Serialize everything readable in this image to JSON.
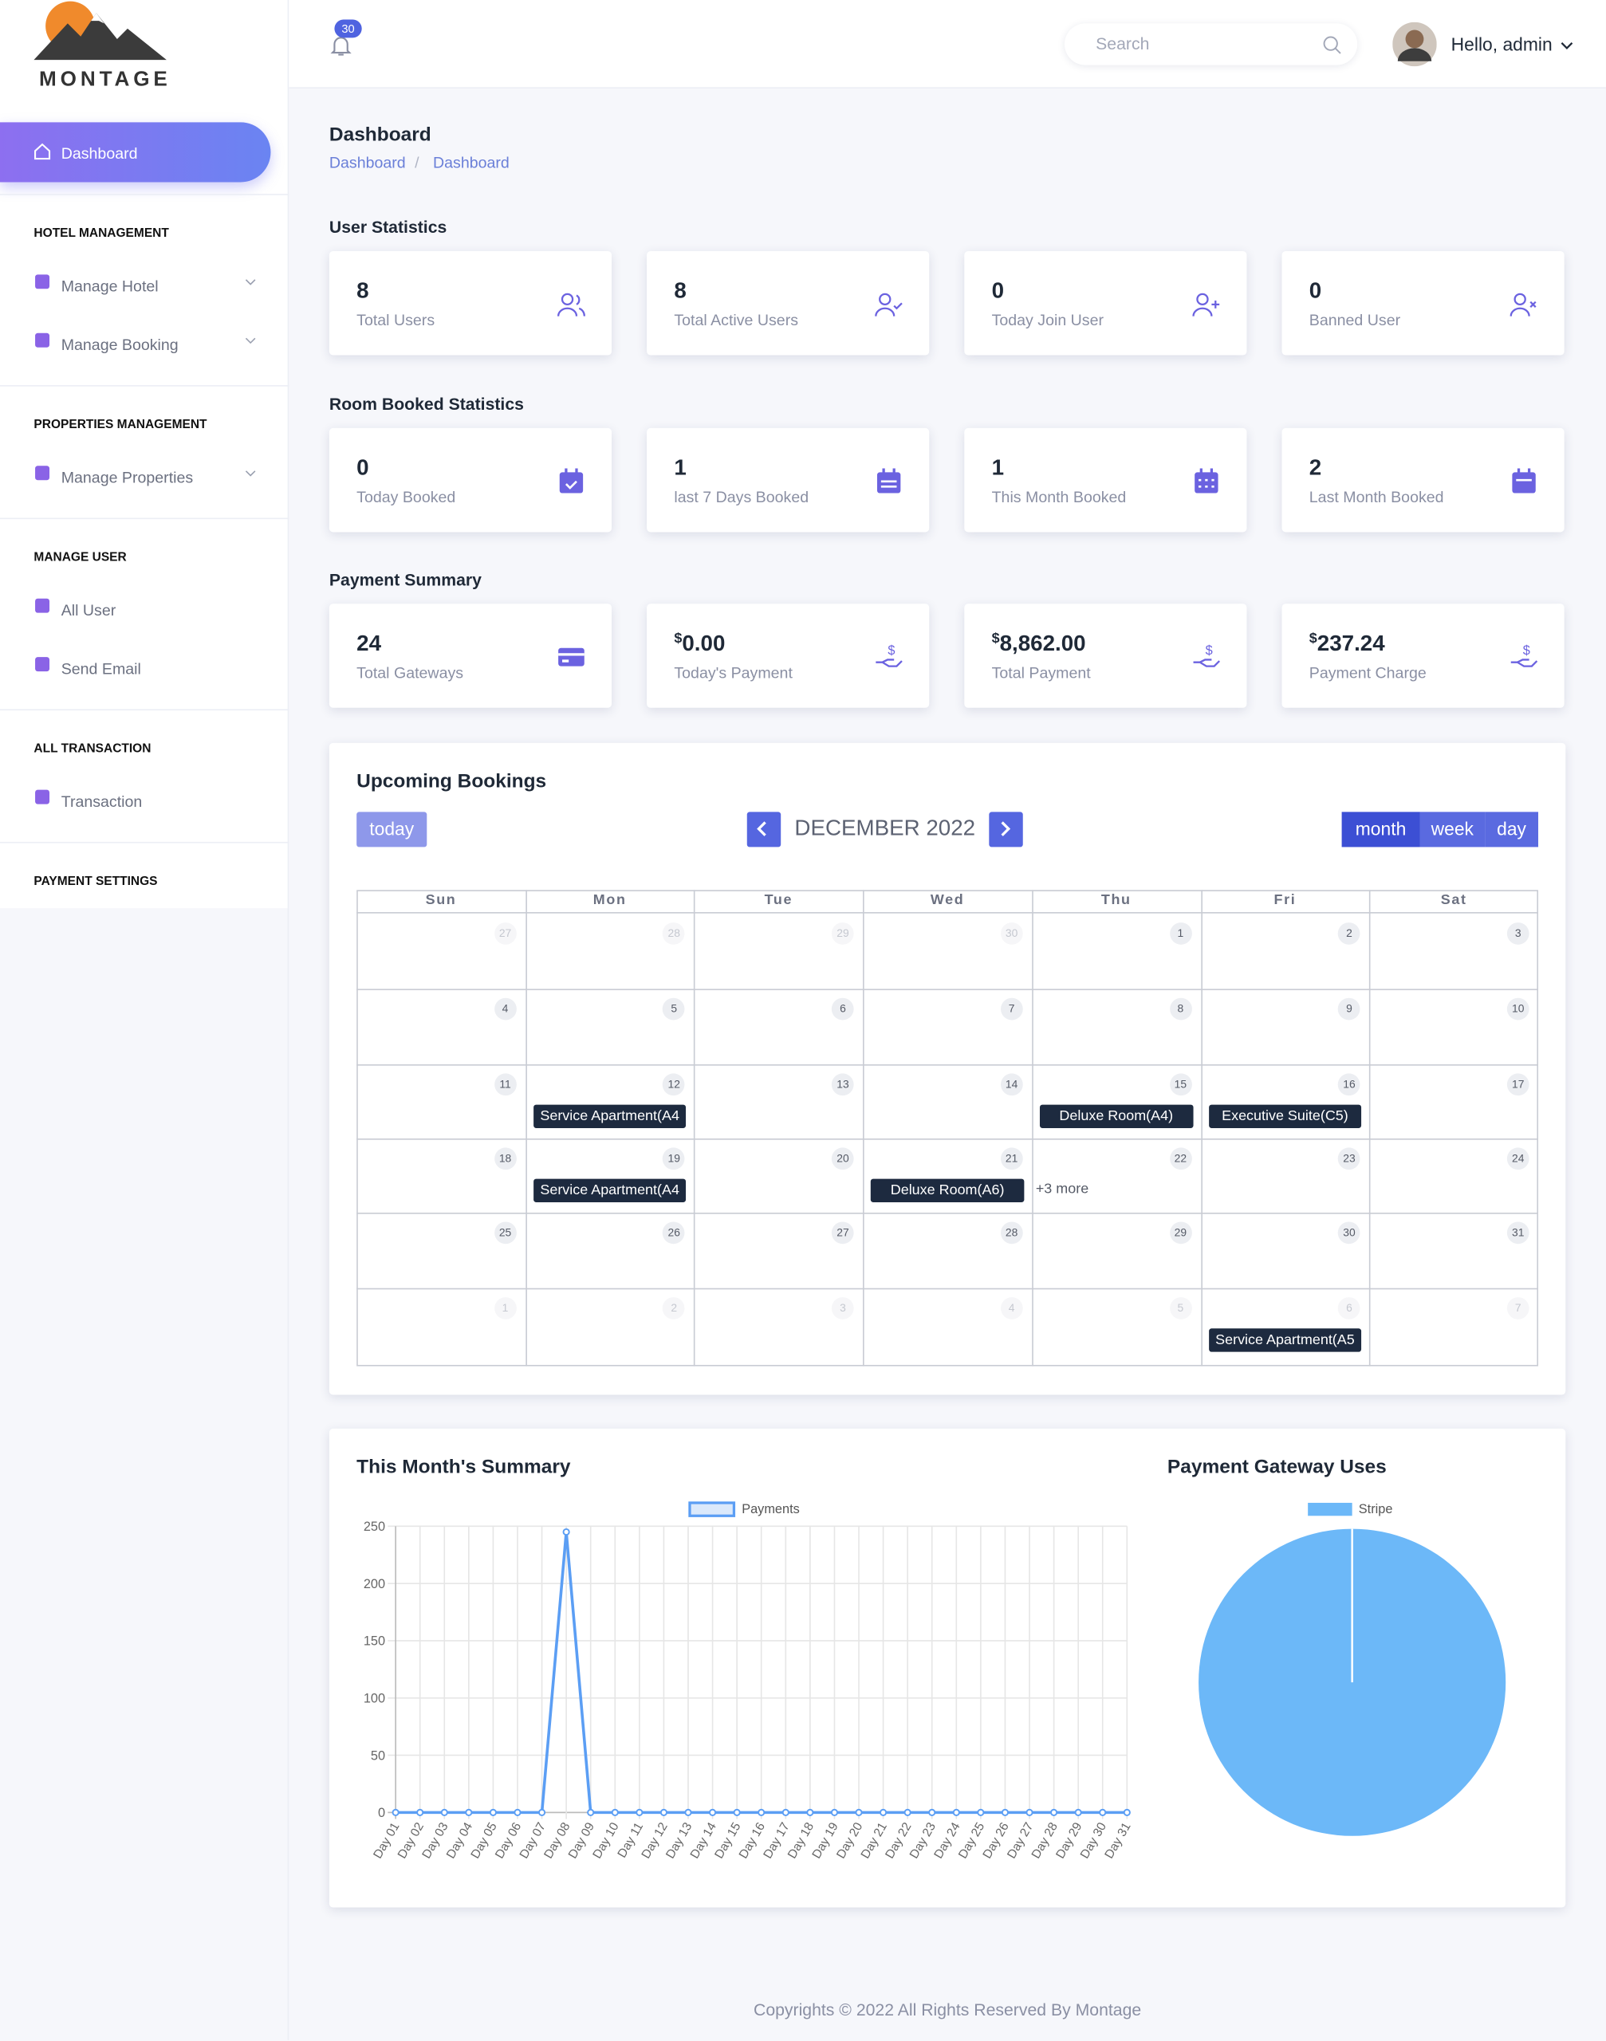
{
  "brand": "MONTAGE",
  "sidebar": {
    "active": "Dashboard",
    "sections": [
      {
        "title": "HOTEL MANAGEMENT",
        "items": [
          {
            "label": "Manage Hotel",
            "submenu": true
          },
          {
            "label": "Manage Booking",
            "submenu": true
          }
        ]
      },
      {
        "title": "PROPERTIES MANAGEMENT",
        "items": [
          {
            "label": "Manage Properties",
            "submenu": true
          }
        ]
      },
      {
        "title": "MANAGE USER",
        "items": [
          {
            "label": "All User",
            "submenu": false
          },
          {
            "label": "Send Email",
            "submenu": false
          }
        ]
      },
      {
        "title": "ALL TRANSACTION",
        "items": [
          {
            "label": "Transaction",
            "submenu": false
          }
        ]
      },
      {
        "title": "PAYMENT SETTINGS",
        "items": []
      }
    ]
  },
  "header": {
    "notification_count": 30,
    "search_placeholder": "Search",
    "greeting": "Hello, admin"
  },
  "page": {
    "title": "Dashboard",
    "breadcrumb": [
      "Dashboard",
      "Dashboard"
    ]
  },
  "stat_groups": [
    {
      "title": "User Statistics",
      "cards": [
        {
          "value": "8",
          "label": "Total Users"
        },
        {
          "value": "8",
          "label": "Total Active Users"
        },
        {
          "value": "0",
          "label": "Today Join User"
        },
        {
          "value": "0",
          "label": "Banned User"
        }
      ]
    },
    {
      "title": "Room Booked Statistics",
      "cards": [
        {
          "value": "0",
          "label": "Today Booked"
        },
        {
          "value": "1",
          "label": "last 7 Days Booked"
        },
        {
          "value": "1",
          "label": "This Month Booked"
        },
        {
          "value": "2",
          "label": "Last Month Booked"
        }
      ]
    },
    {
      "title": "Payment Summary",
      "cards": [
        {
          "value": "24",
          "label": "Total Gateways"
        },
        {
          "currency": "$",
          "value": "0.00",
          "label": "Today's Payment"
        },
        {
          "currency": "$",
          "value": "8,862.00",
          "label": "Total Payment"
        },
        {
          "currency": "$",
          "value": "237.24",
          "label": "Payment Charge"
        }
      ]
    }
  ],
  "calendar": {
    "title": "Upcoming Bookings",
    "today_button": "today",
    "month": "DECEMBER 2022",
    "views": [
      "month",
      "week",
      "day"
    ],
    "active_view": "month",
    "weekdays": [
      "Sun",
      "Mon",
      "Tue",
      "Wed",
      "Thu",
      "Fri",
      "Sat"
    ],
    "weeks": [
      [
        {
          "day": 27
        },
        {
          "day": 28
        },
        {
          "day": 29
        },
        {
          "day": 30
        },
        {
          "day": 1
        },
        {
          "day": 2
        },
        {
          "day": 3
        }
      ],
      [
        {
          "day": 4
        },
        {
          "day": 5
        },
        {
          "day": 6
        },
        {
          "day": 7
        },
        {
          "day": 8
        },
        {
          "day": 9
        },
        {
          "day": 10
        }
      ],
      [
        {
          "day": 11
        },
        {
          "day": 12,
          "events": [
            "Service Apartment(A4"
          ]
        },
        {
          "day": 13
        },
        {
          "day": 14
        },
        {
          "day": 15,
          "events": [
            "Deluxe Room(A4)"
          ]
        },
        {
          "day": 16,
          "events": [
            "Executive Suite(C5)"
          ]
        },
        {
          "day": 17
        }
      ],
      [
        {
          "day": 18
        },
        {
          "day": 19,
          "events": [
            "Service Apartment(A4"
          ]
        },
        {
          "day": 20
        },
        {
          "day": 21,
          "events": [
            "Deluxe Room(A6)"
          ]
        },
        {
          "day": 22,
          "more": "+3 more"
        },
        {
          "day": 23
        },
        {
          "day": 24
        }
      ],
      [
        {
          "day": 25
        },
        {
          "day": 26
        },
        {
          "day": 27
        },
        {
          "day": 28
        },
        {
          "day": 29
        },
        {
          "day": 30
        },
        {
          "day": 31
        }
      ],
      [
        {
          "day": 1
        },
        {
          "day": 2
        },
        {
          "day": 3
        },
        {
          "day": 4
        },
        {
          "day": 5
        },
        {
          "day": 6,
          "events": [
            "Service Apartment(A5"
          ]
        },
        {
          "day": 7
        }
      ]
    ]
  },
  "chart_data": [
    {
      "type": "line",
      "title": "This Month's Summary",
      "categories": [
        "Day 01",
        "Day 02",
        "Day 03",
        "Day 04",
        "Day 05",
        "Day 06",
        "Day 07",
        "Day 08",
        "Day 09",
        "Day 10",
        "Day 11",
        "Day 12",
        "Day 13",
        "Day 14",
        "Day 15",
        "Day 16",
        "Day 17",
        "Day 18",
        "Day 19",
        "Day 20",
        "Day 21",
        "Day 22",
        "Day 23",
        "Day 24",
        "Day 25",
        "Day 26",
        "Day 27",
        "Day 28",
        "Day 29",
        "Day 30",
        "Day 31"
      ],
      "series": [
        {
          "name": "Payments",
          "color": "#5b9ef4",
          "values": [
            0,
            0,
            0,
            0,
            0,
            0,
            0,
            245,
            0,
            0,
            0,
            0,
            0,
            0,
            0,
            0,
            0,
            0,
            0,
            0,
            0,
            0,
            0,
            0,
            0,
            0,
            0,
            0,
            0,
            0,
            0
          ]
        }
      ],
      "ylim": [
        0,
        250
      ],
      "yticks": [
        0,
        50,
        100,
        150,
        200,
        250
      ],
      "grid": true
    },
    {
      "type": "pie",
      "title": "Payment Gateway Uses",
      "categories": [
        "Stripe"
      ],
      "values": [
        100
      ],
      "colors": [
        "#6cb8f8"
      ]
    }
  ],
  "footer": "Copyrights © 2022 All Rights Reserved By Montage"
}
